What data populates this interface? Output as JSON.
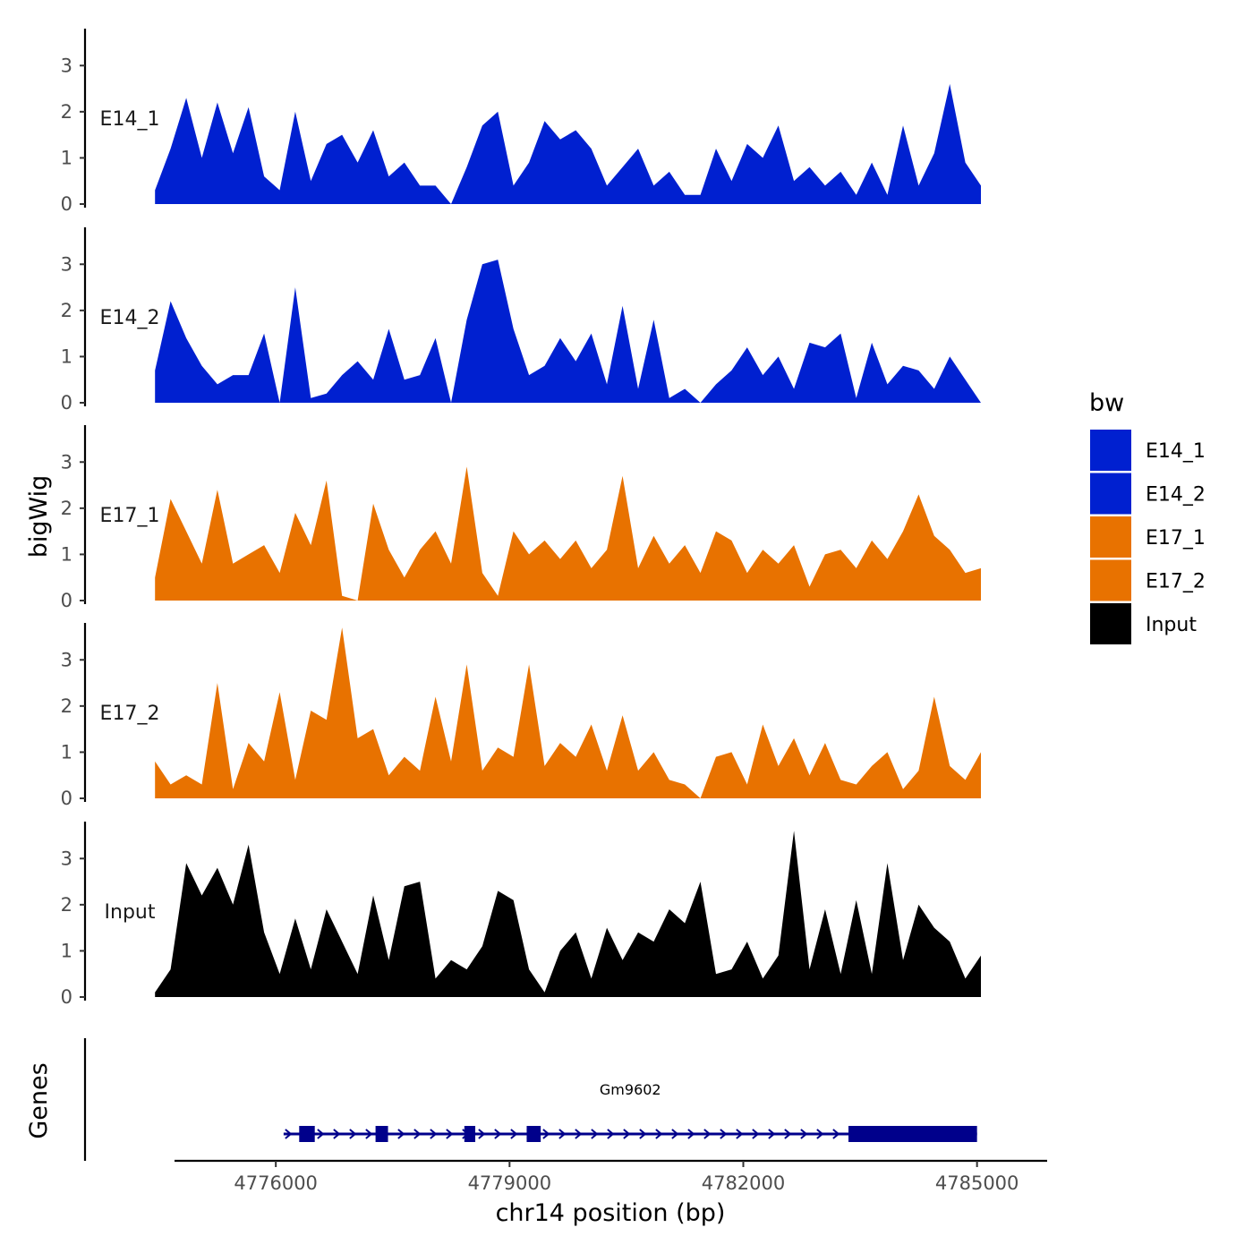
{
  "chart_data": {
    "type": "area",
    "chromosome": "chr14",
    "xlabel": "chr14 position (bp)",
    "ylabel": "bigWig",
    "genes_label": "Genes",
    "xlim": [
      4774700,
      4785900
    ],
    "x_ticks": [
      4776000,
      4779000,
      4782000,
      4785000
    ],
    "x_tick_labels": [
      "4776000",
      "4779000",
      "4782000",
      "4785000"
    ],
    "ylim": [
      0,
      3.8
    ],
    "y_ticks": [
      0,
      1,
      2,
      3
    ],
    "y_tick_labels": [
      "0",
      "1",
      "2",
      "3"
    ],
    "legend": {
      "title": "bw",
      "entries": [
        {
          "label": "E14_1",
          "color": "#0020d0"
        },
        {
          "label": "E14_2",
          "color": "#0020d0"
        },
        {
          "label": "E17_1",
          "color": "#e87200"
        },
        {
          "label": "E17_2",
          "color": "#e87200"
        },
        {
          "label": "Input",
          "color": "#000000"
        }
      ]
    },
    "x": [
      4774450,
      4774650,
      4774850,
      4775050,
      4775250,
      4775450,
      4775650,
      4775850,
      4776050,
      4776250,
      4776450,
      4776650,
      4776850,
      4777050,
      4777250,
      4777450,
      4777650,
      4777850,
      4778050,
      4778250,
      4778450,
      4778650,
      4778850,
      4779050,
      4779250,
      4779450,
      4779650,
      4779850,
      4780050,
      4780250,
      4780450,
      4780650,
      4780850,
      4781050,
      4781250,
      4781450,
      4781650,
      4781850,
      4782050,
      4782250,
      4782450,
      4782650,
      4782850,
      4783050,
      4783250,
      4783450,
      4783650,
      4783850,
      4784050,
      4784250,
      4784450,
      4784650,
      4784850,
      4785050
    ],
    "series": [
      {
        "name": "E14_1",
        "color": "#0020d0",
        "values": [
          0.3,
          1.2,
          2.3,
          1.0,
          2.2,
          1.1,
          2.1,
          0.6,
          0.3,
          2.0,
          0.5,
          1.3,
          1.5,
          0.9,
          1.6,
          0.6,
          0.9,
          0.4,
          0.4,
          0.0,
          0.8,
          1.7,
          2.0,
          0.4,
          0.9,
          1.8,
          1.4,
          1.6,
          1.2,
          0.4,
          0.8,
          1.2,
          0.4,
          0.7,
          0.2,
          0.2,
          1.2,
          0.5,
          1.3,
          1.0,
          1.7,
          0.5,
          0.8,
          0.4,
          0.7,
          0.2,
          0.9,
          0.2,
          1.7,
          0.4,
          1.1,
          2.6,
          0.9,
          0.4
        ]
      },
      {
        "name": "E14_2",
        "color": "#0020d0",
        "values": [
          0.7,
          2.2,
          1.4,
          0.8,
          0.4,
          0.6,
          0.6,
          1.5,
          0.0,
          2.5,
          0.1,
          0.2,
          0.6,
          0.9,
          0.5,
          1.6,
          0.5,
          0.6,
          1.4,
          0.0,
          1.8,
          3.0,
          3.1,
          1.6,
          0.6,
          0.8,
          1.4,
          0.9,
          1.5,
          0.4,
          2.1,
          0.3,
          1.8,
          0.1,
          0.3,
          0.0,
          0.4,
          0.7,
          1.2,
          0.6,
          1.0,
          0.3,
          1.3,
          1.2,
          1.5,
          0.1,
          1.3,
          0.4,
          0.8,
          0.7,
          0.3,
          1.0,
          0.5,
          0.0
        ]
      },
      {
        "name": "E17_1",
        "color": "#e87200",
        "values": [
          0.5,
          2.2,
          1.5,
          0.8,
          2.4,
          0.8,
          1.0,
          1.2,
          0.6,
          1.9,
          1.2,
          2.6,
          0.1,
          0.0,
          2.1,
          1.1,
          0.5,
          1.1,
          1.5,
          0.8,
          2.9,
          0.6,
          0.1,
          1.5,
          1.0,
          1.3,
          0.9,
          1.3,
          0.7,
          1.1,
          2.7,
          0.7,
          1.4,
          0.8,
          1.2,
          0.6,
          1.5,
          1.3,
          0.6,
          1.1,
          0.8,
          1.2,
          0.3,
          1.0,
          1.1,
          0.7,
          1.3,
          0.9,
          1.5,
          2.3,
          1.4,
          1.1,
          0.6,
          0.7
        ]
      },
      {
        "name": "E17_2",
        "color": "#e87200",
        "values": [
          0.8,
          0.3,
          0.5,
          0.3,
          2.5,
          0.2,
          1.2,
          0.8,
          2.3,
          0.4,
          1.9,
          1.7,
          3.7,
          1.3,
          1.5,
          0.5,
          0.9,
          0.6,
          2.2,
          0.8,
          2.9,
          0.6,
          1.1,
          0.9,
          2.9,
          0.7,
          1.2,
          0.9,
          1.6,
          0.6,
          1.8,
          0.6,
          1.0,
          0.4,
          0.3,
          0.0,
          0.9,
          1.0,
          0.3,
          1.6,
          0.7,
          1.3,
          0.5,
          1.2,
          0.4,
          0.3,
          0.7,
          1.0,
          0.2,
          0.6,
          2.2,
          0.7,
          0.4,
          1.0
        ]
      },
      {
        "name": "Input",
        "color": "#000000",
        "values": [
          0.1,
          0.6,
          2.9,
          2.2,
          2.8,
          2.0,
          3.3,
          1.4,
          0.5,
          1.7,
          0.6,
          1.9,
          1.2,
          0.5,
          2.2,
          0.8,
          2.4,
          2.5,
          0.4,
          0.8,
          0.6,
          1.1,
          2.3,
          2.1,
          0.6,
          0.1,
          1.0,
          1.4,
          0.4,
          1.5,
          0.8,
          1.4,
          1.2,
          1.9,
          1.6,
          2.5,
          0.5,
          0.6,
          1.2,
          0.4,
          0.9,
          3.6,
          0.6,
          1.9,
          0.5,
          2.1,
          0.5,
          2.9,
          0.8,
          2.0,
          1.5,
          1.2,
          0.4,
          0.9
        ]
      }
    ],
    "genes": [
      {
        "name": "Gm9602",
        "color": "#00008b",
        "start": 4776100,
        "end": 4785000,
        "exons": [
          [
            4776300,
            4776500
          ],
          [
            4777280,
            4777440
          ],
          [
            4778420,
            4778560
          ],
          [
            4779220,
            4779400
          ],
          [
            4783350,
            4785000
          ]
        ]
      }
    ]
  }
}
